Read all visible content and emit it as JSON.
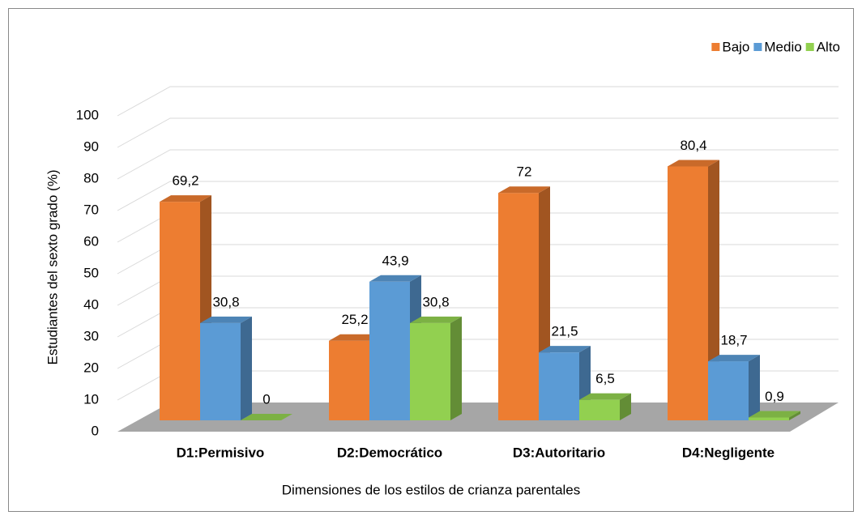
{
  "chart_data": {
    "type": "bar",
    "categories": [
      "D1:Permisivo",
      "D2:Democrático",
      "D3:Autoritario",
      "D4:Negligente"
    ],
    "series": [
      {
        "name": "Bajo",
        "color": "#ED7D31",
        "values": [
          69.2,
          25.2,
          72,
          80.4
        ],
        "value_labels": [
          "69,2",
          "25,2",
          "72",
          "80,4"
        ]
      },
      {
        "name": "Medio",
        "color": "#5B9BD5",
        "values": [
          30.8,
          43.9,
          21.5,
          18.7
        ],
        "value_labels": [
          "30,8",
          "43,9",
          "21,5",
          "18,7"
        ]
      },
      {
        "name": "Alto",
        "color": "#92D050",
        "values": [
          0,
          30.8,
          6.5,
          0.9
        ],
        "value_labels": [
          "0",
          "30,8",
          "6,5",
          "0,9"
        ]
      }
    ],
    "ylabel": "Estudiantes del sexto grado (%)",
    "xlabel": "Dimensiones de los estilos de crianza parentales",
    "ylim": [
      0,
      100
    ],
    "yticks": [
      0,
      10,
      20,
      30,
      40,
      50,
      60,
      70,
      80,
      90,
      100
    ],
    "grid": true,
    "legend": "top-right"
  }
}
